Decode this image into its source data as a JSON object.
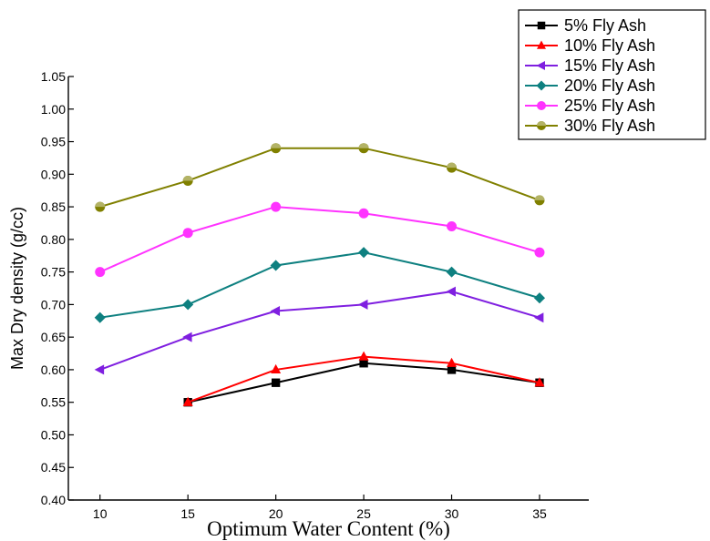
{
  "chart_data": {
    "type": "line",
    "xlabel": "Optimum Water Content (%)",
    "ylabel": "Max Dry density (g/cc)",
    "xlim": [
      8.2,
      37.8
    ],
    "ylim": [
      0.4,
      1.05
    ],
    "x_ticks": [
      "10",
      "15",
      "20",
      "25",
      "30",
      "35"
    ],
    "y_ticks": [
      "0.40",
      "0.45",
      "0.50",
      "0.55",
      "0.60",
      "0.65",
      "0.70",
      "0.75",
      "0.80",
      "0.85",
      "0.90",
      "0.95",
      "1.00",
      "1.05"
    ],
    "legend_position": "top-right",
    "grid": false,
    "series": [
      {
        "name": "5% Fly Ash",
        "color": "#000000",
        "marker": "square",
        "x": [
          15,
          20,
          25,
          30,
          35
        ],
        "values": [
          0.55,
          0.58,
          0.61,
          0.6,
          0.58
        ]
      },
      {
        "name": "10% Fly Ash",
        "color": "#ff0000",
        "marker": "triangle-up",
        "x": [
          15,
          20,
          25,
          30,
          35
        ],
        "values": [
          0.55,
          0.6,
          0.62,
          0.61,
          0.58
        ]
      },
      {
        "name": "15% Fly Ash",
        "color": "#7f1fe0",
        "marker": "triangle-left",
        "x": [
          10,
          15,
          20,
          25,
          30,
          35
        ],
        "values": [
          0.6,
          0.65,
          0.69,
          0.7,
          0.72,
          0.68
        ]
      },
      {
        "name": "20% Fly Ash",
        "color": "#0e8080",
        "marker": "diamond",
        "x": [
          10,
          15,
          20,
          25,
          30,
          35
        ],
        "values": [
          0.68,
          0.7,
          0.76,
          0.78,
          0.75,
          0.71
        ]
      },
      {
        "name": "25% Fly Ash",
        "color": "#ff33ff",
        "marker": "circle",
        "x": [
          10,
          15,
          20,
          25,
          30,
          35
        ],
        "values": [
          0.75,
          0.81,
          0.85,
          0.84,
          0.82,
          0.78
        ]
      },
      {
        "name": "30% Fly Ash",
        "color": "#808000",
        "marker": "circle-half",
        "x": [
          10,
          15,
          20,
          25,
          30,
          35
        ],
        "values": [
          0.85,
          0.89,
          0.94,
          0.94,
          0.91,
          0.86
        ]
      }
    ]
  }
}
